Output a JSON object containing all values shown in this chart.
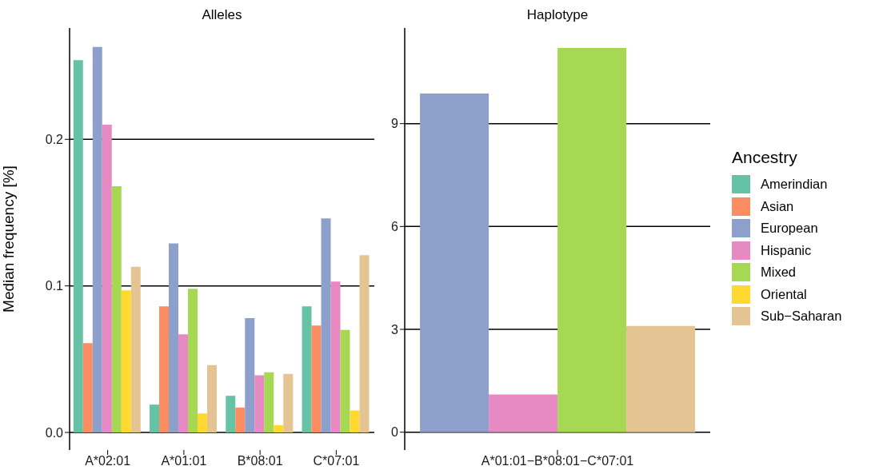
{
  "chart_data": [
    {
      "type": "bar",
      "title": "Alleles",
      "ylabel": "Median frequency [%]",
      "categories": [
        "A*02:01",
        "A*01:01",
        "B*08:01",
        "C*07:01"
      ],
      "series": [
        {
          "name": "Amerindian",
          "color": "#66c2a5",
          "values": [
            0.254,
            0.019,
            0.025,
            0.086
          ]
        },
        {
          "name": "Asian",
          "color": "#fc8d62",
          "values": [
            0.061,
            0.086,
            0.017,
            0.073
          ]
        },
        {
          "name": "European",
          "color": "#8da0cb",
          "values": [
            0.263,
            0.129,
            0.078,
            0.146
          ]
        },
        {
          "name": "Hispanic",
          "color": "#e78ac3",
          "values": [
            0.21,
            0.067,
            0.039,
            0.103
          ]
        },
        {
          "name": "Mixed",
          "color": "#a6d854",
          "values": [
            0.168,
            0.098,
            0.041,
            0.07
          ]
        },
        {
          "name": "Oriental",
          "color": "#ffd92f",
          "values": [
            0.097,
            0.013,
            0.005,
            0.015
          ]
        },
        {
          "name": "Sub−Saharan",
          "color": "#e5c494",
          "values": [
            0.113,
            0.046,
            0.04,
            0.121
          ]
        }
      ],
      "ylim": [
        -0.012,
        0.276
      ],
      "yticks": [
        {
          "value": 0,
          "label": "0.0"
        },
        {
          "value": 0.1,
          "label": "0.1"
        },
        {
          "value": 0.2,
          "label": "0.2"
        }
      ],
      "grid": "y",
      "legend": "right",
      "legend_title": "Ancestry"
    },
    {
      "type": "bar",
      "title": "Haplotype",
      "categories": [
        "A*01:01−B*08:01−C*07:01"
      ],
      "series": [
        {
          "color": "#8da0cb",
          "values": [
            9.88
          ]
        },
        {
          "color": "#e78ac3",
          "values": [
            1.1
          ]
        },
        {
          "color": "#a6d854",
          "values": [
            11.21
          ]
        },
        {
          "color": "#e5c494",
          "values": [
            3.1
          ]
        }
      ],
      "ylim": [
        -0.52,
        11.79
      ],
      "yticks": [
        0,
        3,
        6,
        9
      ],
      "grid": "y"
    }
  ]
}
